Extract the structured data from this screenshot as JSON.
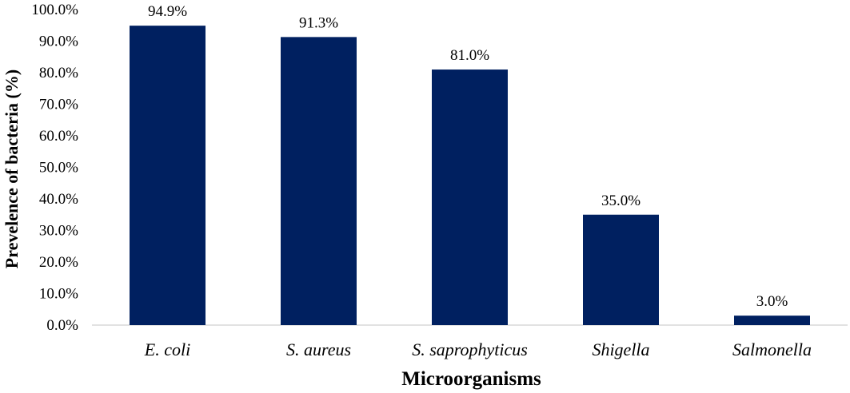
{
  "chart_data": {
    "type": "bar",
    "categories": [
      "E. coli",
      "S. aureus",
      "S. saprophyticus",
      "Shigella",
      "Salmonella"
    ],
    "values": [
      94.9,
      91.3,
      81.0,
      35.0,
      3.0
    ],
    "data_labels": [
      "94.9%",
      "91.3%",
      "81.0%",
      "35.0%",
      "3.0%"
    ],
    "title": "",
    "xlabel": "Microorganisms",
    "ylabel": "Prevelence of bacteria (%)",
    "ylim": [
      0,
      100
    ],
    "yticks": [
      "0.0%",
      "10.0%",
      "20.0%",
      "30.0%",
      "40.0%",
      "50.0%",
      "60.0%",
      "70.0%",
      "80.0%",
      "90.0%",
      "100.0%"
    ],
    "grid": false,
    "legend": "none",
    "bar_color": "#002060"
  }
}
